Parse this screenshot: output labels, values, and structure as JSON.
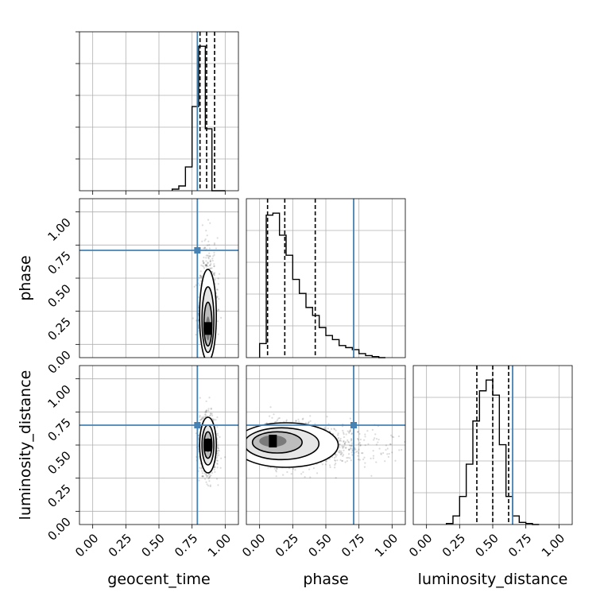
{
  "chart_data": {
    "type": "corner",
    "parameters": [
      "geocent_time",
      "phase",
      "luminosity_distance"
    ],
    "axis_range": [
      -0.1,
      1.1
    ],
    "tick_labels": [
      "0.00",
      "0.25",
      "0.50",
      "0.75",
      "1.00"
    ],
    "ticks": [
      0,
      0.25,
      0.5,
      0.75,
      1.0
    ],
    "grid": true,
    "truths": {
      "geocent_time": 0.79,
      "phase": 0.71,
      "luminosity_distance": 0.65
    },
    "truth_color": "#4682b4",
    "marginals": {
      "geocent_time": {
        "bin_edges": [
          0.6,
          0.65,
          0.7,
          0.75,
          0.8,
          0.85,
          0.9,
          0.95,
          1.0
        ],
        "heights": [
          0.01,
          0.03,
          0.15,
          0.53,
          0.91,
          0.39,
          0.0,
          0.0
        ],
        "quantiles": [
          0.81,
          0.86,
          0.92
        ]
      },
      "phase": {
        "bin_edges": [
          0.0,
          0.05,
          0.1,
          0.15,
          0.2,
          0.25,
          0.3,
          0.35,
          0.4,
          0.45,
          0.5,
          0.55,
          0.6,
          0.65,
          0.7,
          0.75,
          0.8,
          0.85,
          0.9,
          0.95
        ],
        "heights": [
          0.07,
          0.71,
          0.72,
          0.61,
          0.51,
          0.39,
          0.32,
          0.25,
          0.21,
          0.15,
          0.11,
          0.09,
          0.06,
          0.05,
          0.04,
          0.02,
          0.01,
          0.005,
          0.0
        ],
        "quantiles": [
          0.06,
          0.19,
          0.42
        ]
      },
      "luminosity_distance": {
        "bin_edges": [
          0.15,
          0.2,
          0.25,
          0.3,
          0.35,
          0.4,
          0.45,
          0.5,
          0.55,
          0.6,
          0.65,
          0.7,
          0.75,
          0.8,
          0.85
        ],
        "heights": [
          0.005,
          0.04,
          0.13,
          0.28,
          0.48,
          0.62,
          0.67,
          0.6,
          0.37,
          0.13,
          0.04,
          0.01,
          0.005,
          0.0
        ],
        "quantiles": [
          0.38,
          0.5,
          0.62
        ]
      }
    },
    "joint": [
      {
        "x": "geocent_time",
        "y": "phase",
        "center": [
          0.87,
          0.22
        ],
        "spread": [
          0.03,
          0.22
        ],
        "mode": [
          0.87,
          0.12
        ]
      },
      {
        "x": "geocent_time",
        "y": "luminosity_distance",
        "center": [
          0.87,
          0.5
        ],
        "spread": [
          0.03,
          0.1
        ],
        "mode": [
          0.87,
          0.5
        ]
      },
      {
        "x": "phase",
        "y": "luminosity_distance",
        "center": [
          0.2,
          0.5
        ],
        "spread": [
          0.15,
          0.08
        ],
        "mode": [
          0.1,
          0.53
        ]
      }
    ]
  }
}
